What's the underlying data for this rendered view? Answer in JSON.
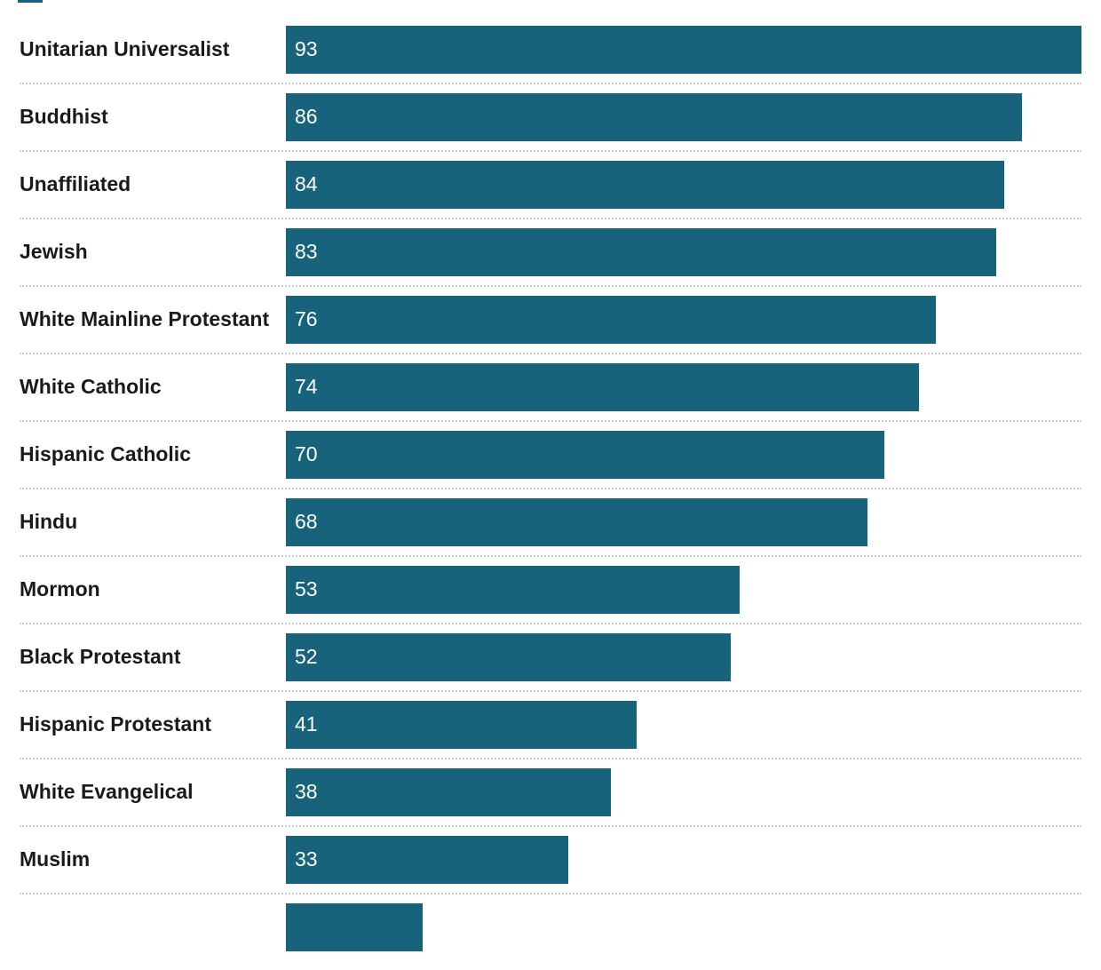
{
  "colors": {
    "bar": "#17637b",
    "label": "#1a1a1a",
    "value_text": "#ffffff",
    "divider": "#cfcfcf"
  },
  "chart_data": {
    "type": "bar",
    "orientation": "horizontal",
    "categories": [
      "Unitarian Universalist",
      "Buddhist",
      "Unaffiliated",
      "Jewish",
      "White Mainline Protestant",
      "White Catholic",
      "Hispanic Catholic",
      "Hindu",
      "Mormon",
      "Black Protestant",
      "Hispanic Protestant",
      "White Evangelical",
      "Muslim"
    ],
    "values": [
      93,
      86,
      84,
      83,
      76,
      74,
      70,
      68,
      53,
      52,
      41,
      38,
      33
    ],
    "xlim": [
      0,
      93
    ],
    "grid": false,
    "legend": "top-left"
  }
}
